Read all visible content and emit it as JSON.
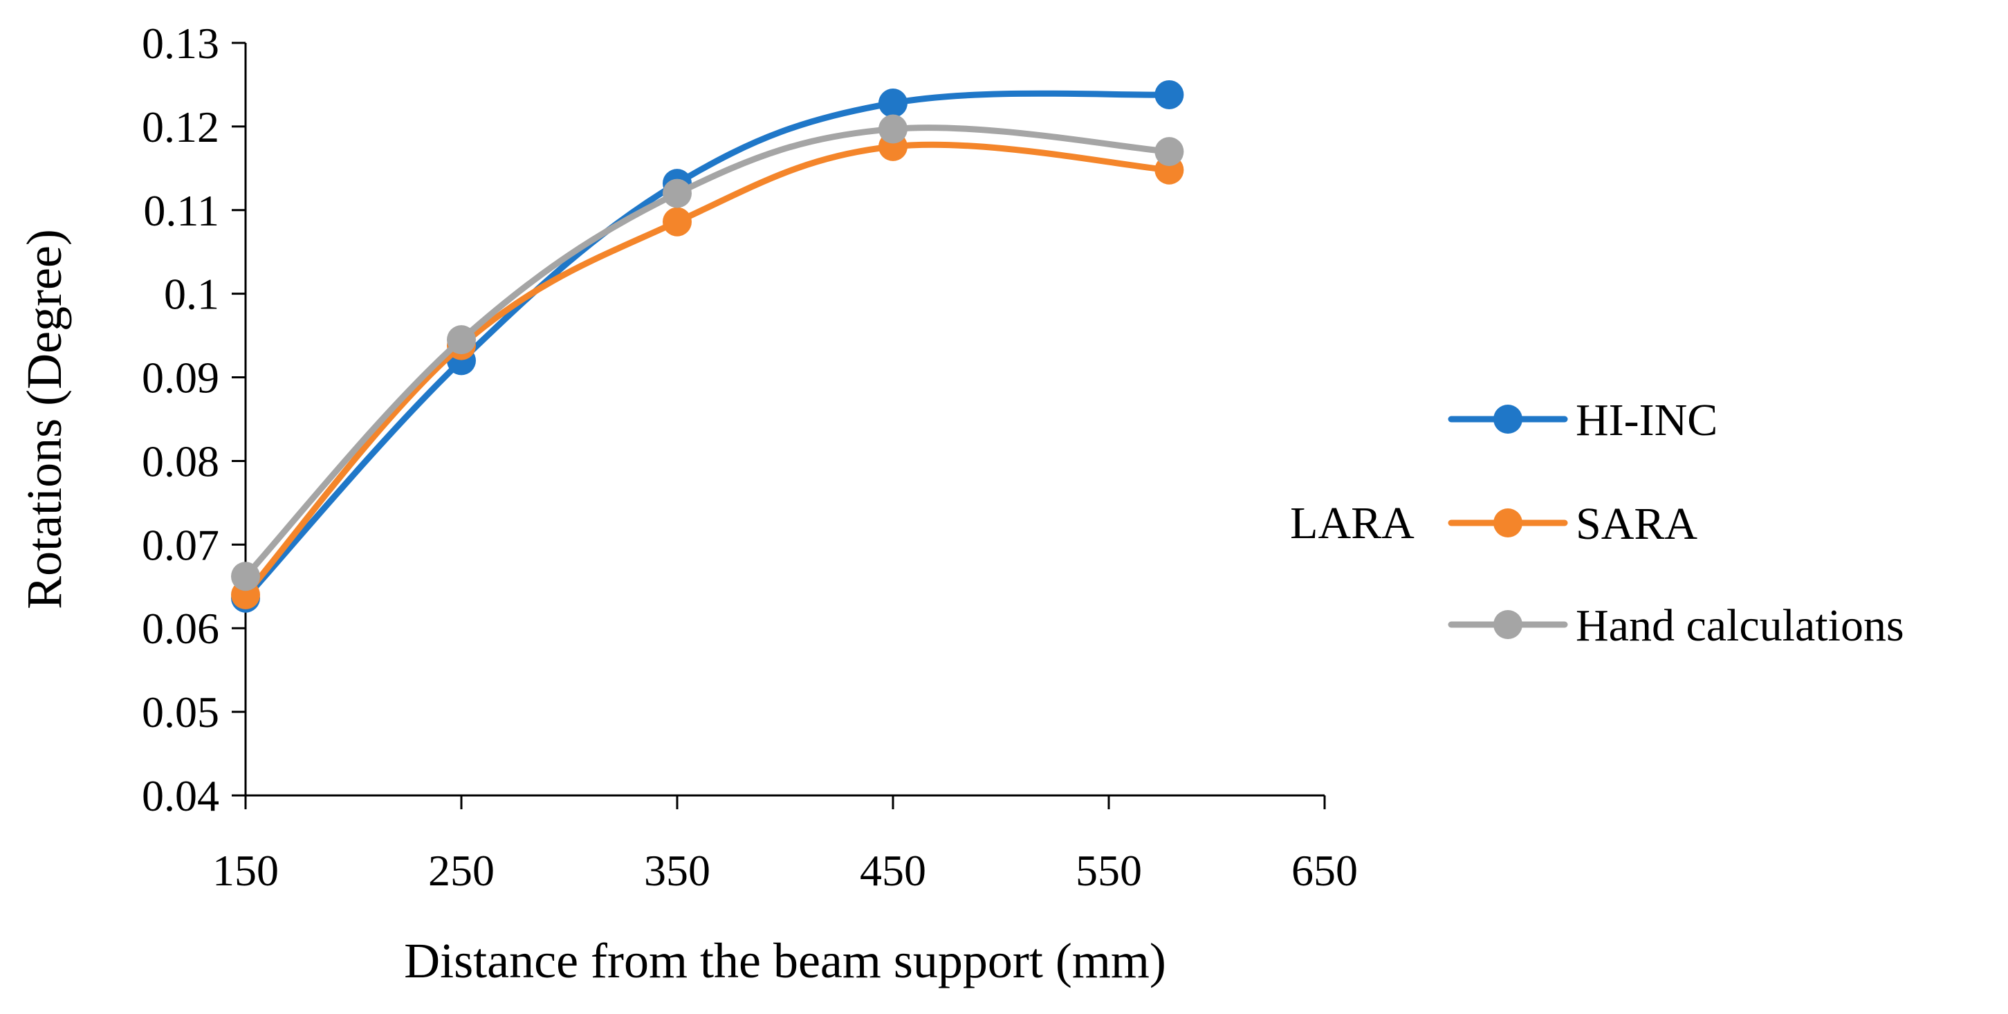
{
  "chart_data": {
    "type": "line",
    "title": "",
    "xlabel": "Distance from the beam support (mm)",
    "ylabel": "Rotations (Degree)",
    "xlim": [
      150,
      650
    ],
    "ylim": [
      0.04,
      0.13
    ],
    "xticks": [
      150,
      250,
      350,
      450,
      550,
      650
    ],
    "yticks": [
      0.04,
      0.05,
      0.06,
      0.07,
      0.08,
      0.09,
      0.1,
      0.11,
      0.12,
      0.13
    ],
    "xtick_labels": [
      "150",
      "250",
      "350",
      "450",
      "550",
      "650"
    ],
    "ytick_labels": [
      "0.04",
      "0.05",
      "0.06",
      "0.07",
      "0.08",
      "0.09",
      "0.1",
      "0.11",
      "0.12",
      "0.13"
    ],
    "grid": false,
    "legend_position": "right",
    "legend_group_label": "LARA",
    "series": [
      {
        "name": "HI-INC",
        "color": "#1f77c8",
        "x": [
          150,
          250,
          350,
          450,
          578
        ],
        "y": [
          0.0636,
          0.092,
          0.1132,
          0.1228,
          0.1238
        ]
      },
      {
        "name": "SARA",
        "color": "#f4852a",
        "x": [
          150,
          250,
          350,
          450,
          578
        ],
        "y": [
          0.064,
          0.0938,
          0.1086,
          0.1176,
          0.1148
        ]
      },
      {
        "name": "Hand calculations",
        "color": "#a5a5a5",
        "x": [
          150,
          250,
          350,
          450,
          578
        ],
        "y": [
          0.0662,
          0.0945,
          0.112,
          0.1197,
          0.117
        ]
      }
    ]
  }
}
